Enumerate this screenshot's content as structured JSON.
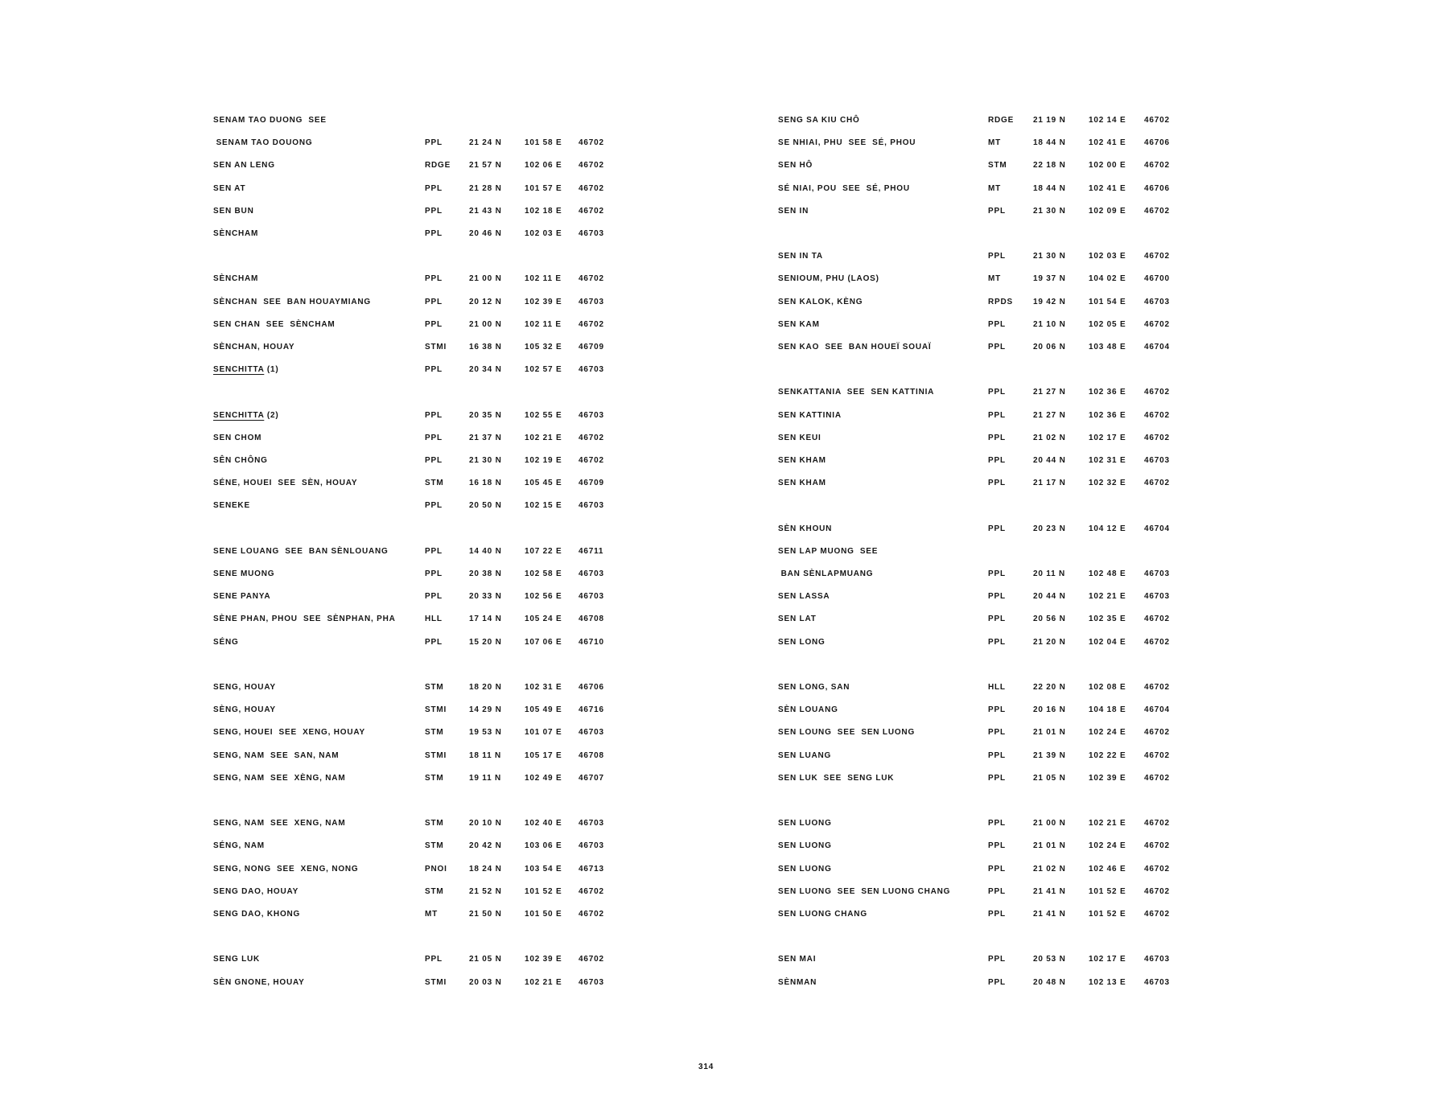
{
  "page_number": "314",
  "columns": [
    {
      "rows": [
        {
          "name": "SENAM TAO DUONG  SEE"
        },
        {
          "name": " SENAM TAO DOUONG",
          "type": "PPL",
          "lat": "21 24 N",
          "lon": "101 58 E",
          "code": "46702"
        },
        {
          "name": "SEN AN LENG",
          "type": "RDGE",
          "lat": "21 57 N",
          "lon": "102 06 E",
          "code": "46702"
        },
        {
          "name": "SEN AT",
          "type": "PPL",
          "lat": "21 28 N",
          "lon": "101 57 E",
          "code": "46702"
        },
        {
          "name": "SEN BUN",
          "type": "PPL",
          "lat": "21 43 N",
          "lon": "102 18 E",
          "code": "46702"
        },
        {
          "name": "SÈNCHAM",
          "type": "PPL",
          "lat": "20 46 N",
          "lon": "102 03 E",
          "code": "46703"
        },
        null,
        {
          "name": "SÈNCHAM",
          "type": "PPL",
          "lat": "21 00 N",
          "lon": "102 11 E",
          "code": "46702"
        },
        {
          "name": "SÈNCHAN  SEE  BAN HOUAYMIANG",
          "type": "PPL",
          "lat": "20 12 N",
          "lon": "102 39 E",
          "code": "46703"
        },
        {
          "name": "SEN CHAN  SEE  SÈNCHAM",
          "type": "PPL",
          "lat": "21 00 N",
          "lon": "102 11 E",
          "code": "46702"
        },
        {
          "name": "SÈNCHAN, HOUAY",
          "type": "STMI",
          "lat": "16 38 N",
          "lon": "105 32 E",
          "code": "46709"
        },
        {
          "name_underlined": "SENCHITTA",
          "name": " (1)",
          "type": "PPL",
          "lat": "20 34 N",
          "lon": "102 57 E",
          "code": "46703"
        },
        null,
        {
          "name_underlined": "SENCHITTA",
          "name": " (2)",
          "type": "PPL",
          "lat": "20 35 N",
          "lon": "102 55 E",
          "code": "46703"
        },
        {
          "name": "SEN CHOM",
          "type": "PPL",
          "lat": "21 37 N",
          "lon": "102 21 E",
          "code": "46702"
        },
        {
          "name": "SÊN CHÔNG",
          "type": "PPL",
          "lat": "21 30 N",
          "lon": "102 19 E",
          "code": "46702"
        },
        {
          "name": "SÉNE, HOUEI  SEE  SÈN, HOUAY",
          "type": "STM",
          "lat": "16 18 N",
          "lon": "105 45 E",
          "code": "46709"
        },
        {
          "name": "SENEKE",
          "type": "PPL",
          "lat": "20 50 N",
          "lon": "102 15 E",
          "code": "46703"
        },
        null,
        {
          "name": "SENE LOUANG  SEE  BAN SÈNLOUANG",
          "type": "PPL",
          "lat": "14 40 N",
          "lon": "107 22 E",
          "code": "46711"
        },
        {
          "name": "SENE MUONG",
          "type": "PPL",
          "lat": "20 38 N",
          "lon": "102 58 E",
          "code": "46703"
        },
        {
          "name": "SENE PANYA",
          "type": "PPL",
          "lat": "20 33 N",
          "lon": "102 56 E",
          "code": "46703"
        },
        {
          "name": "SÈNE PHAN, PHOU  SEE  SÈNPHAN, PHA",
          "type": "HLL",
          "lat": "17 14 N",
          "lon": "105 24 E",
          "code": "46708"
        },
        {
          "name": "SÉNG",
          "type": "PPL",
          "lat": "15 20 N",
          "lon": "107 06 E",
          "code": "46710"
        },
        null,
        {
          "name": "SENG, HOUAY",
          "type": "STM",
          "lat": "18 20 N",
          "lon": "102 31 E",
          "code": "46706"
        },
        {
          "name": "SÈNG, HOUAY",
          "type": "STMI",
          "lat": "14 29 N",
          "lon": "105 49 E",
          "code": "46716"
        },
        {
          "name": "SENG, HOUEI  SEE  XENG, HOUAY",
          "type": "STM",
          "lat": "19 53 N",
          "lon": "101 07 E",
          "code": "46703"
        },
        {
          "name": "SENG, NAM  SEE  SAN, NAM",
          "type": "STMI",
          "lat": "18 11 N",
          "lon": "105 17 E",
          "code": "46708"
        },
        {
          "name": "SENG, NAM  SEE  XÈNG, NAM",
          "type": "STM",
          "lat": "19 11 N",
          "lon": "102 49 E",
          "code": "46707"
        },
        null,
        {
          "name": "SENG, NAM  SEE  XENG, NAM",
          "type": "STM",
          "lat": "20 10 N",
          "lon": "102 40 E",
          "code": "46703"
        },
        {
          "name": "SÉNG, NAM",
          "type": "STM",
          "lat": "20 42 N",
          "lon": "103 06 E",
          "code": "46703"
        },
        {
          "name": "SENG, NONG  SEE  XENG, NONG",
          "type": "PNOI",
          "lat": "18 24 N",
          "lon": "103 54 E",
          "code": "46713"
        },
        {
          "name": "SENG DAO, HOUAY",
          "type": "STM",
          "lat": "21 52 N",
          "lon": "101 52 E",
          "code": "46702"
        },
        {
          "name": "SENG DAO, KHONG",
          "type": "MT",
          "lat": "21 50 N",
          "lon": "101 50 E",
          "code": "46702"
        },
        null,
        {
          "name": "SENG LUK",
          "type": "PPL",
          "lat": "21 05 N",
          "lon": "102 39 E",
          "code": "46702"
        },
        {
          "name": "SÈN GNONE, HOUAY",
          "type": "STMI",
          "lat": "20 03 N",
          "lon": "102 21 E",
          "code": "46703"
        }
      ]
    },
    {
      "rows": [
        {
          "name": "SENG SA KIU CHÔ",
          "type": "RDGE",
          "lat": "21 19 N",
          "lon": "102 14 E",
          "code": "46702"
        },
        {
          "name": "SE NHIAI, PHU  SEE  SÉ, PHOU",
          "type": "MT",
          "lat": "18 44 N",
          "lon": "102 41 E",
          "code": "46706"
        },
        {
          "name": "SEN HÔ",
          "type": "STM",
          "lat": "22 18 N",
          "lon": "102 00 E",
          "code": "46702"
        },
        {
          "name": "SÉ NIAI, POU  SEE  SÉ, PHOU",
          "type": "MT",
          "lat": "18 44 N",
          "lon": "102 41 E",
          "code": "46706"
        },
        {
          "name": "SEN IN",
          "type": "PPL",
          "lat": "21 30 N",
          "lon": "102 09 E",
          "code": "46702"
        },
        null,
        {
          "name": "SEN IN TA",
          "type": "PPL",
          "lat": "21 30 N",
          "lon": "102 03 E",
          "code": "46702"
        },
        {
          "name": "SENIOUM, PHU (LAOS)",
          "type": "MT",
          "lat": "19 37 N",
          "lon": "104 02 E",
          "code": "46700"
        },
        {
          "name": "SEN KALOK, KÈNG",
          "type": "RPDS",
          "lat": "19 42 N",
          "lon": "101 54 E",
          "code": "46703"
        },
        {
          "name": "SEN KAM",
          "type": "PPL",
          "lat": "21 10 N",
          "lon": "102 05 E",
          "code": "46702"
        },
        {
          "name": "SEN KAO  SEE  BAN HOUEÏ SOUAÏ",
          "type": "PPL",
          "lat": "20 06 N",
          "lon": "103 48 E",
          "code": "46704"
        },
        null,
        {
          "name": "SENKATTANIA  SEE  SEN KATTINIA",
          "type": "PPL",
          "lat": "21 27 N",
          "lon": "102 36 E",
          "code": "46702"
        },
        {
          "name": "SEN KATTINIA",
          "type": "PPL",
          "lat": "21 27 N",
          "lon": "102 36 E",
          "code": "46702"
        },
        {
          "name": "SEN KEUI",
          "type": "PPL",
          "lat": "21 02 N",
          "lon": "102 17 E",
          "code": "46702"
        },
        {
          "name": "SEN KHAM",
          "type": "PPL",
          "lat": "20 44 N",
          "lon": "102 31 E",
          "code": "46703"
        },
        {
          "name": "SEN KHAM",
          "type": "PPL",
          "lat": "21 17 N",
          "lon": "102 32 E",
          "code": "46702"
        },
        null,
        {
          "name": "SÈN KHOUN",
          "type": "PPL",
          "lat": "20 23 N",
          "lon": "104 12 E",
          "code": "46704"
        },
        {
          "name": "SEN LAP MUONG  SEE"
        },
        {
          "name": " BAN SÈNLAPMUANG",
          "type": "PPL",
          "lat": "20 11 N",
          "lon": "102 48 E",
          "code": "46703"
        },
        {
          "name": "SEN LASSA",
          "type": "PPL",
          "lat": "20 44 N",
          "lon": "102 21 E",
          "code": "46703"
        },
        {
          "name": "SEN LAT",
          "type": "PPL",
          "lat": "20 56 N",
          "lon": "102 35 E",
          "code": "46702"
        },
        {
          "name": "SEN LONG",
          "type": "PPL",
          "lat": "21 20 N",
          "lon": "102 04 E",
          "code": "46702"
        },
        null,
        {
          "name": "SEN LONG, SAN",
          "type": "HLL",
          "lat": "22 20 N",
          "lon": "102 08 E",
          "code": "46702"
        },
        {
          "name": "SÈN LOUANG",
          "type": "PPL",
          "lat": "20 16 N",
          "lon": "104 18 E",
          "code": "46704"
        },
        {
          "name": "SEN LOUNG  SEE  SEN LUONG",
          "type": "PPL",
          "lat": "21 01 N",
          "lon": "102 24 E",
          "code": "46702"
        },
        {
          "name": "SEN LUANG",
          "type": "PPL",
          "lat": "21 39 N",
          "lon": "102 22 E",
          "code": "46702"
        },
        {
          "name": "SEN LUK  SEE  SENG LUK",
          "type": "PPL",
          "lat": "21 05 N",
          "lon": "102 39 E",
          "code": "46702"
        },
        null,
        {
          "name": "SEN LUONG",
          "type": "PPL",
          "lat": "21 00 N",
          "lon": "102 21 E",
          "code": "46702"
        },
        {
          "name": "SEN LUONG",
          "type": "PPL",
          "lat": "21 01 N",
          "lon": "102 24 E",
          "code": "46702"
        },
        {
          "name": "SEN LUONG",
          "type": "PPL",
          "lat": "21 02 N",
          "lon": "102 46 E",
          "code": "46702"
        },
        {
          "name": "SEN LUONG  SEE  SEN LUONG CHANG",
          "type": "PPL",
          "lat": "21 41 N",
          "lon": "101 52 E",
          "code": "46702"
        },
        {
          "name": "SEN LUONG CHANG",
          "type": "PPL",
          "lat": "21 41 N",
          "lon": "101 52 E",
          "code": "46702"
        },
        null,
        {
          "name": "SEN MAI",
          "type": "PPL",
          "lat": "20 53 N",
          "lon": "102 17 E",
          "code": "46703"
        },
        {
          "name": "SÈNMAN",
          "type": "PPL",
          "lat": "20 48 N",
          "lon": "102 13 E",
          "code": "46703"
        }
      ]
    }
  ]
}
